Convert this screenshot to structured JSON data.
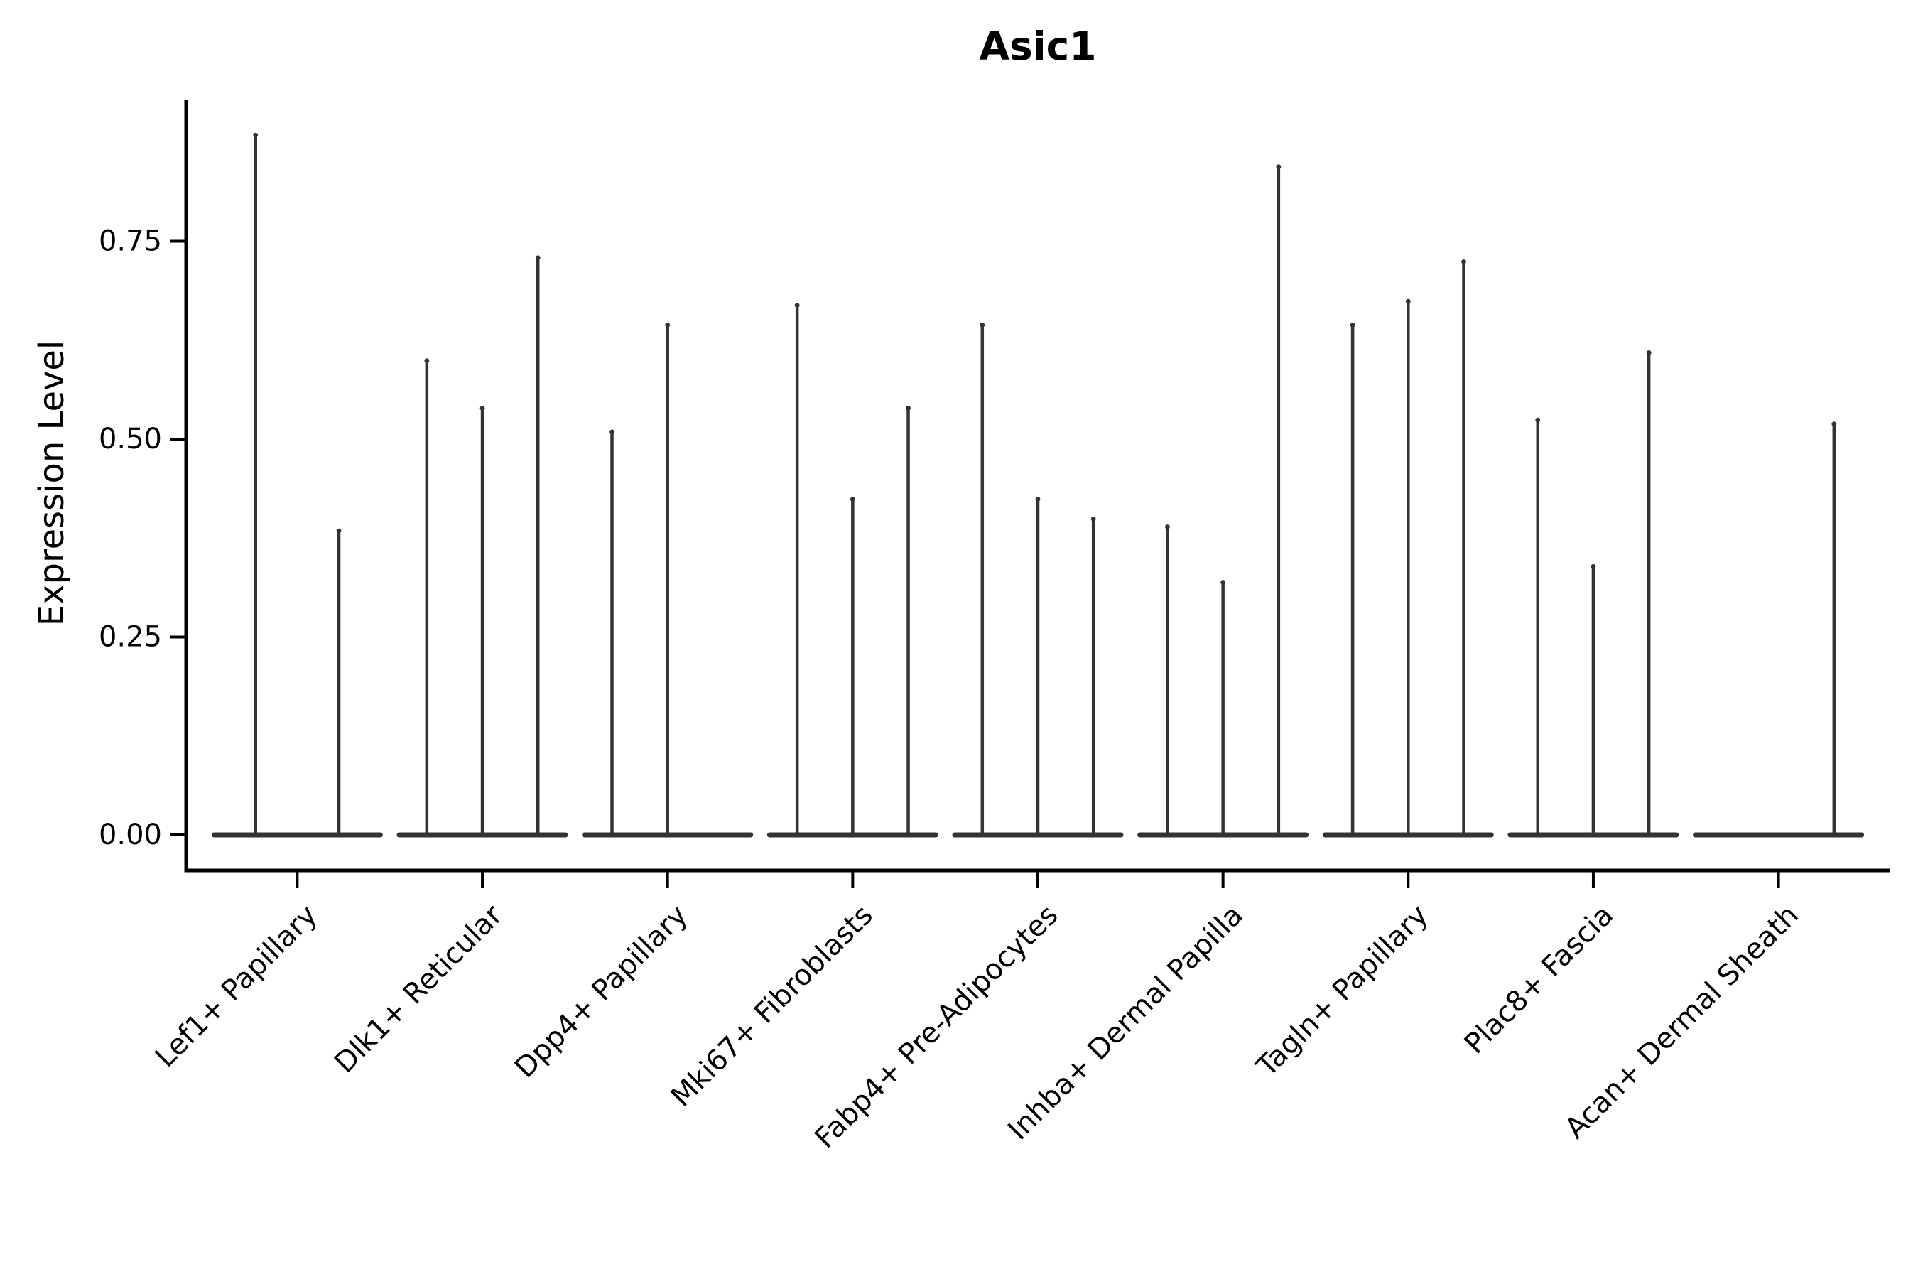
{
  "title": "Asic1",
  "chart_data": {
    "type": "violin",
    "title": "Asic1",
    "ylabel": "Expression Level",
    "xlabel": "",
    "grid": false,
    "legend": "none",
    "yticks": [
      {
        "label": "0.00",
        "value": 0.0
      },
      {
        "label": "0.25",
        "value": 0.25
      },
      {
        "label": "0.50",
        "value": 0.5
      },
      {
        "label": "0.75",
        "value": 0.75
      }
    ],
    "ylim": [
      -0.045,
      0.93
    ],
    "categories": [
      "Lef1+ Papillary",
      "Dlk1+ Reticular",
      "Dpp4+ Papillary",
      "Mki67+ Fibroblasts",
      "Fabp4+ Pre-Adipocytes",
      "Inhba+ Dermal Papilla",
      "Tagln+ Papillary",
      "Plac8+ Fascia",
      "Acan+ Dermal Sheath"
    ],
    "violins": [
      {
        "category": "Lef1+ Papillary",
        "spikes": [
          {
            "slot": -0.225,
            "peak": 0.885
          },
          {
            "slot": 0.225,
            "peak": 0.385
          }
        ]
      },
      {
        "category": "Dlk1+ Reticular",
        "spikes": [
          {
            "slot": -0.3,
            "peak": 0.6
          },
          {
            "slot": 0.0,
            "peak": 0.54
          },
          {
            "slot": 0.3,
            "peak": 0.73
          }
        ]
      },
      {
        "category": "Dpp4+ Papillary",
        "spikes": [
          {
            "slot": -0.3,
            "peak": 0.51
          },
          {
            "slot": 0.0,
            "peak": 0.645
          }
        ]
      },
      {
        "category": "Mki67+ Fibroblasts",
        "spikes": [
          {
            "slot": -0.3,
            "peak": 0.67
          },
          {
            "slot": 0.0,
            "peak": 0.425
          },
          {
            "slot": 0.3,
            "peak": 0.54
          }
        ]
      },
      {
        "category": "Fabp4+ Pre-Adipocytes",
        "spikes": [
          {
            "slot": -0.3,
            "peak": 0.645
          },
          {
            "slot": 0.0,
            "peak": 0.425
          },
          {
            "slot": 0.3,
            "peak": 0.4
          }
        ]
      },
      {
        "category": "Inhba+ Dermal Papilla",
        "spikes": [
          {
            "slot": -0.3,
            "peak": 0.39
          },
          {
            "slot": 0.0,
            "peak": 0.32
          },
          {
            "slot": 0.3,
            "peak": 0.845
          }
        ]
      },
      {
        "category": "Tagln+ Papillary",
        "spikes": [
          {
            "slot": -0.3,
            "peak": 0.645
          },
          {
            "slot": 0.0,
            "peak": 0.675
          },
          {
            "slot": 0.3,
            "peak": 0.725
          }
        ]
      },
      {
        "category": "Plac8+ Fascia",
        "spikes": [
          {
            "slot": -0.3,
            "peak": 0.525
          },
          {
            "slot": 0.0,
            "peak": 0.34
          },
          {
            "slot": 0.3,
            "peak": 0.61
          }
        ]
      },
      {
        "category": "Acan+ Dermal Sheath",
        "spikes": [
          {
            "slot": 0.3,
            "peak": 0.52
          }
        ]
      }
    ],
    "baseline_value": 0.0,
    "colors": {
      "violin": "#333333",
      "axis": "#000000",
      "text": "#000000",
      "background": "#ffffff"
    }
  }
}
